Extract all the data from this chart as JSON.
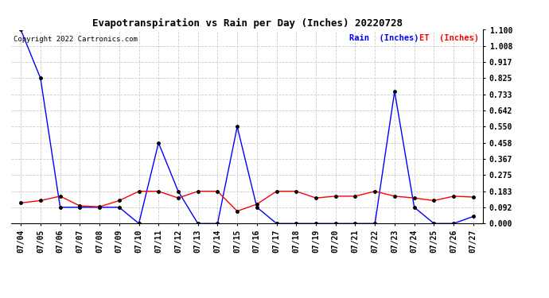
{
  "title": "Evapotranspiration vs Rain per Day (Inches) 20220728",
  "copyright": "Copyright 2022 Cartronics.com",
  "legend_rain": "Rain  (Inches)",
  "legend_et": "ET  (Inches)",
  "dates": [
    "07/04",
    "07/05",
    "07/06",
    "07/07",
    "07/08",
    "07/09",
    "07/10",
    "07/11",
    "07/12",
    "07/13",
    "07/14",
    "07/15",
    "07/16",
    "07/17",
    "07/18",
    "07/19",
    "07/20",
    "07/21",
    "07/22",
    "07/23",
    "07/24",
    "07/25",
    "07/26",
    "07/27"
  ],
  "rain": [
    1.1,
    0.825,
    0.092,
    0.092,
    0.092,
    0.092,
    0.0,
    0.458,
    0.183,
    0.0,
    0.0,
    0.55,
    0.092,
    0.0,
    0.0,
    0.0,
    0.0,
    0.0,
    0.0,
    0.75,
    0.092,
    0.0,
    0.0,
    0.04
  ],
  "et": [
    0.117,
    0.13,
    0.155,
    0.1,
    0.095,
    0.13,
    0.183,
    0.183,
    0.145,
    0.183,
    0.183,
    0.07,
    0.11,
    0.183,
    0.183,
    0.145,
    0.155,
    0.155,
    0.183,
    0.155,
    0.145,
    0.13,
    0.155,
    0.15
  ],
  "ylim": [
    0.0,
    1.1
  ],
  "yticks": [
    0.0,
    0.092,
    0.183,
    0.275,
    0.367,
    0.458,
    0.55,
    0.642,
    0.733,
    0.825,
    0.917,
    1.008,
    1.1
  ],
  "rain_color": "blue",
  "et_color": "red",
  "bg_color": "white",
  "grid_color": "#cccccc",
  "title_color": "black",
  "copyright_color": "black",
  "title_fontsize": 9,
  "tick_fontsize": 7,
  "copyright_fontsize": 6.5
}
